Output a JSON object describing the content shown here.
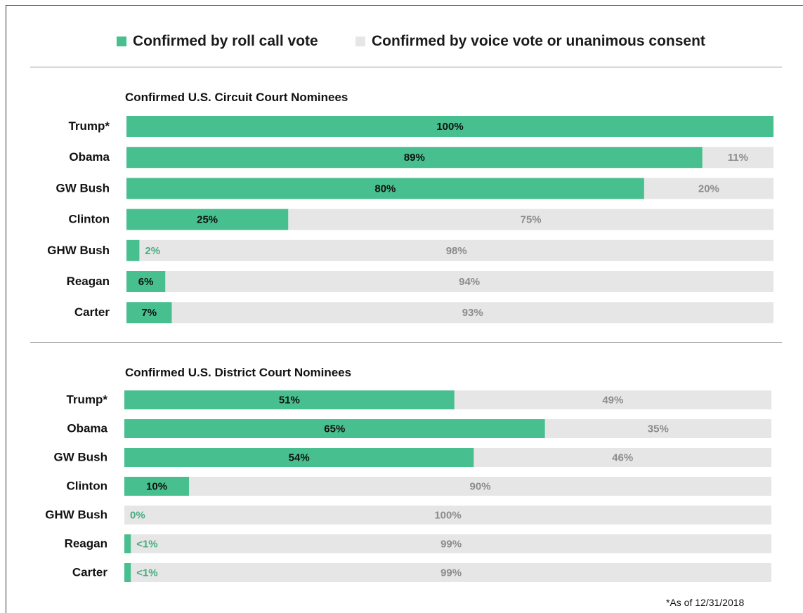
{
  "colors": {
    "roll_call": "#47bf8f",
    "voice": "#e6e6e6",
    "roll_label_inside": "#111111",
    "roll_label_outside": "#48ad7f",
    "voice_label": "#8c8c8c"
  },
  "legend": {
    "roll_call": "Confirmed by roll call vote",
    "voice": "Confirmed by voice vote or unanimous consent"
  },
  "footnote": "*As of 12/31/2018",
  "chart_data": [
    {
      "type": "bar",
      "orientation": "horizontal",
      "stacked": true,
      "title": "Confirmed U.S. Circuit Court Nominees",
      "categories": [
        "Trump*",
        "Obama",
        "GW Bush",
        "Clinton",
        "GHW Bush",
        "Reagan",
        "Carter"
      ],
      "series": [
        {
          "name": "Confirmed by roll call vote",
          "values": [
            100,
            89,
            80,
            25,
            2,
            6,
            7
          ],
          "labels": [
            "100%",
            "89%",
            "80%",
            "25%",
            "2%",
            "6%",
            "7%"
          ]
        },
        {
          "name": "Confirmed by voice vote or unanimous consent",
          "values": [
            0,
            11,
            20,
            75,
            98,
            94,
            93
          ],
          "labels": [
            "",
            "11%",
            "20%",
            "75%",
            "98%",
            "94%",
            "93%"
          ]
        }
      ],
      "xlim": [
        0,
        100
      ],
      "grid": false,
      "legend_position": "top"
    },
    {
      "type": "bar",
      "orientation": "horizontal",
      "stacked": true,
      "title": "Confirmed U.S. District Court Nominees",
      "categories": [
        "Trump*",
        "Obama",
        "GW Bush",
        "Clinton",
        "GHW Bush",
        "Reagan",
        "Carter"
      ],
      "series": [
        {
          "name": "Confirmed by roll call vote",
          "values": [
            51,
            65,
            54,
            10,
            0,
            1,
            1
          ],
          "labels": [
            "51%",
            "65%",
            "54%",
            "10%",
            "0%",
            "<1%",
            "<1%"
          ]
        },
        {
          "name": "Confirmed by voice vote or unanimous consent",
          "values": [
            49,
            35,
            46,
            90,
            100,
            99,
            99
          ],
          "labels": [
            "49%",
            "35%",
            "46%",
            "90%",
            "100%",
            "99%",
            "99%"
          ]
        }
      ],
      "xlim": [
        0,
        100
      ],
      "grid": false,
      "legend_position": "top"
    }
  ]
}
